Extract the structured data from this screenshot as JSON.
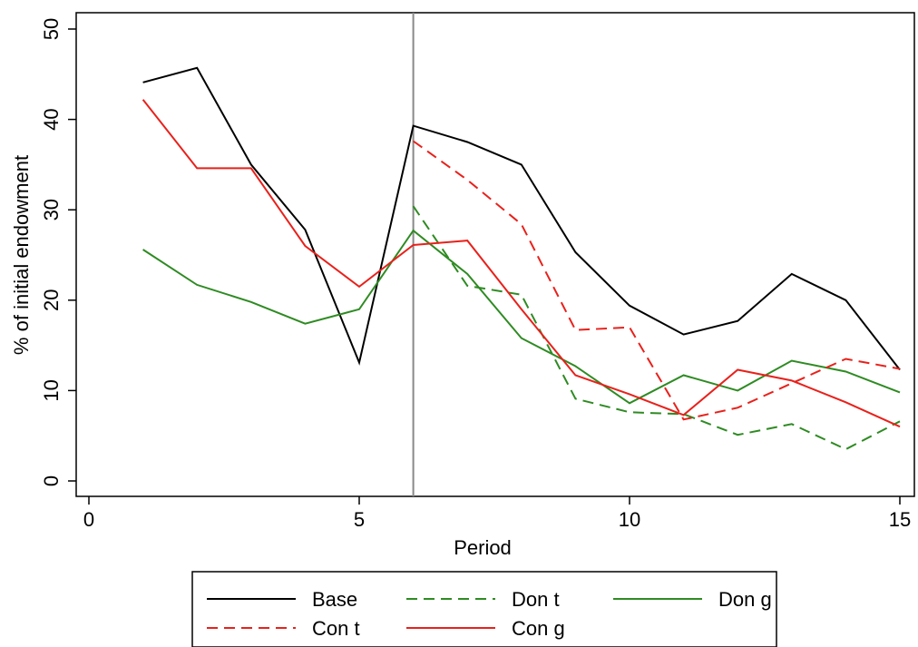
{
  "chart_data": {
    "type": "line",
    "title": "",
    "xlabel": "Period",
    "ylabel": "% of initial endowment",
    "xlim": [
      0,
      15
    ],
    "ylim": [
      0,
      50
    ],
    "xticks": [
      0,
      5,
      10,
      15
    ],
    "yticks": [
      0,
      10,
      20,
      30,
      40,
      50
    ],
    "grid": false,
    "legend_position": "bottom",
    "reference_line": {
      "axis": "x",
      "value": 6,
      "color": "#888888"
    },
    "series": [
      {
        "name": "Base",
        "color": "#000000",
        "dash": "solid",
        "x": [
          1,
          2,
          3,
          4,
          5,
          6,
          7,
          8,
          9,
          10,
          11,
          12,
          13,
          14,
          15
        ],
        "y": [
          44.1,
          45.7,
          35.0,
          27.8,
          13.1,
          39.3,
          37.5,
          35.0,
          25.3,
          19.4,
          16.2,
          17.7,
          22.9,
          20.0,
          12.3
        ]
      },
      {
        "name": "Don t",
        "color": "#2e8b22",
        "dash": "dashed",
        "x": [
          6,
          7,
          8,
          9,
          10,
          11,
          12,
          13,
          14,
          15
        ],
        "y": [
          30.4,
          21.6,
          20.6,
          9.1,
          7.6,
          7.4,
          5.1,
          6.3,
          3.5,
          6.6
        ]
      },
      {
        "name": "Don g",
        "color": "#2e8b22",
        "dash": "solid",
        "x": [
          1,
          2,
          3,
          4,
          5,
          6,
          7,
          8,
          9,
          10,
          11,
          12,
          13,
          14,
          15
        ],
        "y": [
          25.6,
          21.7,
          19.8,
          17.4,
          19.0,
          27.7,
          22.9,
          15.8,
          12.7,
          8.6,
          11.7,
          10.0,
          13.3,
          12.1,
          9.8
        ]
      },
      {
        "name": "Con t",
        "color": "#e8211b",
        "dash": "dashed",
        "x": [
          6,
          7,
          8,
          9,
          10,
          11,
          12,
          13,
          14,
          15
        ],
        "y": [
          37.6,
          33.3,
          28.4,
          16.7,
          17.0,
          6.8,
          8.1,
          10.8,
          13.5,
          12.4
        ]
      },
      {
        "name": "Con g",
        "color": "#e8211b",
        "dash": "solid",
        "x": [
          1,
          2,
          3,
          4,
          5,
          6,
          7,
          8,
          9,
          10,
          11,
          12,
          13,
          14,
          15
        ],
        "y": [
          42.2,
          34.6,
          34.6,
          26.0,
          21.5,
          26.1,
          26.6,
          19.0,
          11.7,
          9.6,
          7.3,
          12.3,
          11.1,
          8.7,
          6.0
        ]
      }
    ],
    "legend_layout": [
      [
        "Base",
        "Don t",
        "Don g"
      ],
      [
        "Con t",
        "Con g"
      ]
    ]
  }
}
